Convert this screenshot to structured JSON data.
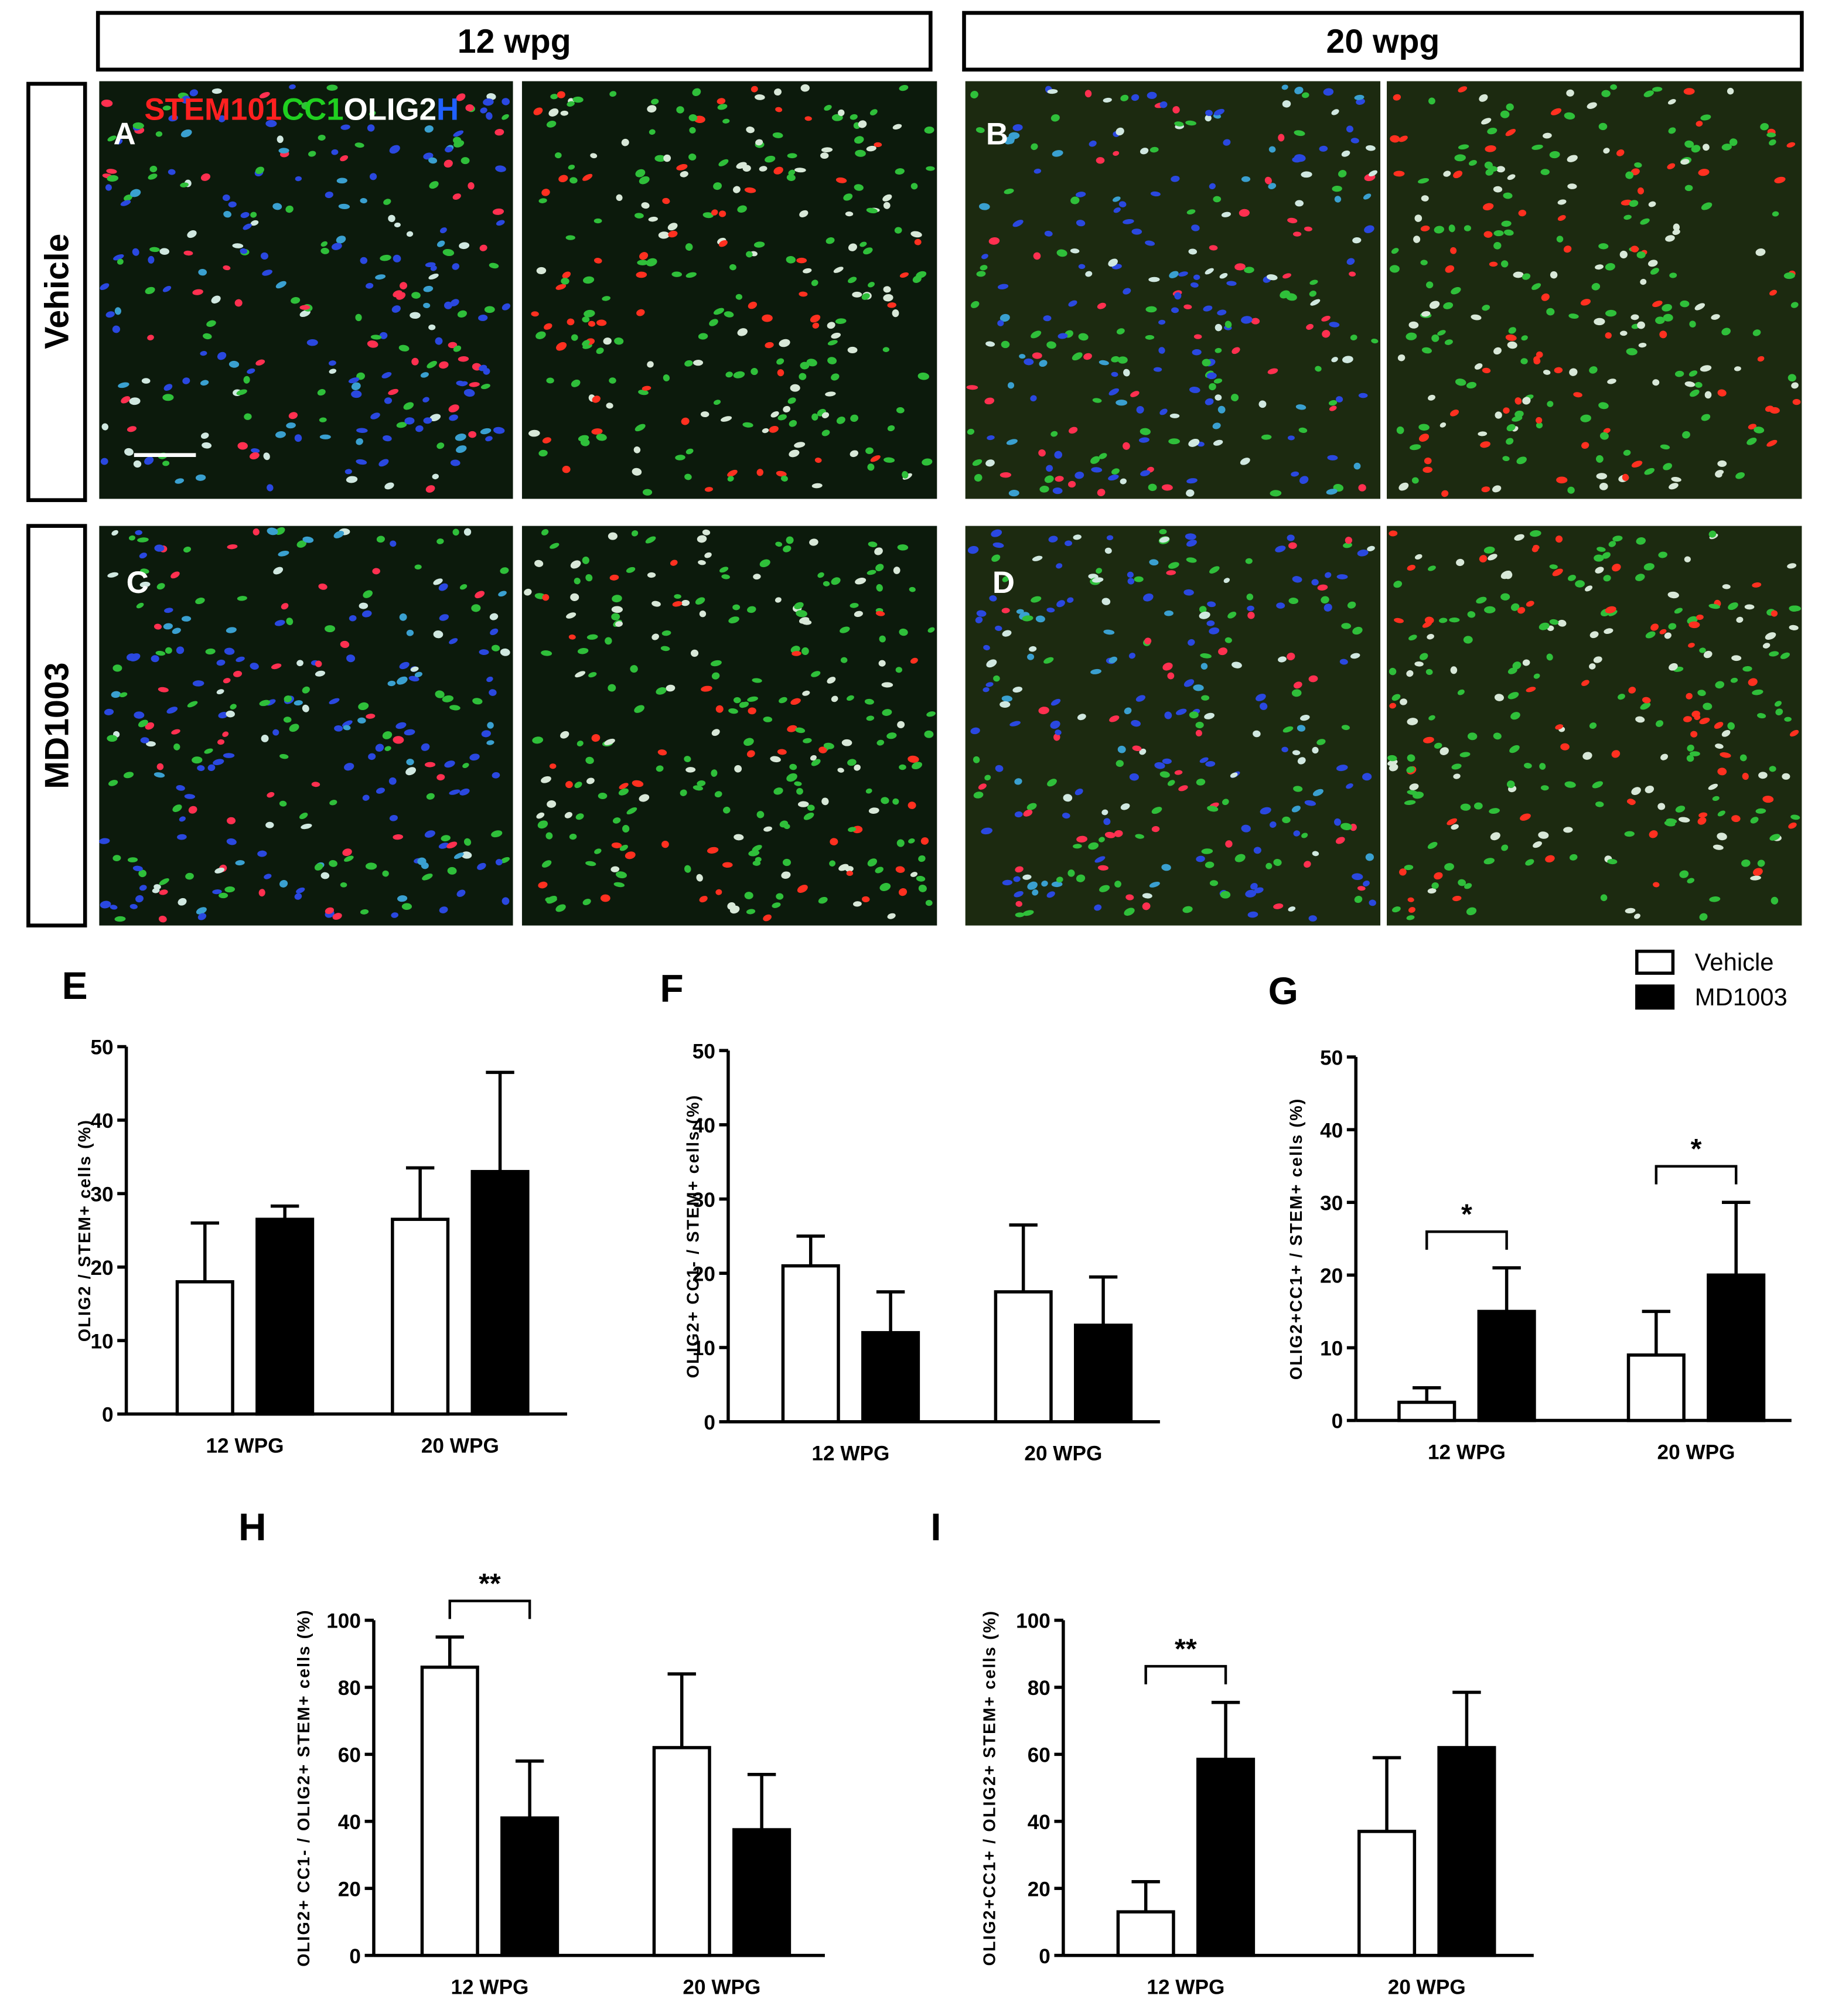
{
  "panels": {
    "columns": [
      "12 wpg",
      "20 wpg"
    ],
    "rows": [
      "Vehicle",
      "MD1003"
    ],
    "letters": [
      "A",
      "B",
      "C",
      "D"
    ],
    "stain": [
      {
        "text": "STEM101",
        "color": "#ff2020"
      },
      {
        "text": "CC1",
        "color": "#20d020"
      },
      {
        "text": "OLIG2",
        "color": "#ffffff"
      },
      {
        "text": "H",
        "color": "#2060ff"
      }
    ]
  },
  "chart_data": [
    {
      "type": "bar",
      "label": "E",
      "ylabel": "OLIG2 / STEM+ cells (%)",
      "categories": [
        "12 WPG",
        "20 WPG"
      ],
      "edgecolor": "#000000",
      "series": [
        {
          "color": "#ffffff",
          "values": [
            18,
            26.5
          ],
          "errors": [
            8,
            7
          ]
        },
        {
          "color": "#000000",
          "values": [
            26.5,
            33
          ],
          "errors": [
            1.8,
            13.5
          ]
        }
      ],
      "ylim": [
        0,
        50
      ],
      "yticks": [
        0,
        10,
        20,
        30,
        40,
        50
      ]
    },
    {
      "type": "bar",
      "label": "F",
      "ylabel": "OLIG2+ CC1- / STEM+ cells (%)",
      "categories": [
        "12 WPG",
        "20 WPG"
      ],
      "edgecolor": "#000000",
      "series": [
        {
          "color": "#ffffff",
          "values": [
            21,
            17.5
          ],
          "errors": [
            4,
            9
          ]
        },
        {
          "color": "#000000",
          "values": [
            12,
            13
          ],
          "errors": [
            5.5,
            6.5
          ]
        }
      ],
      "ylim": [
        0,
        50
      ],
      "yticks": [
        0,
        10,
        20,
        30,
        40,
        50
      ]
    },
    {
      "type": "bar",
      "label": "G",
      "ylabel": "OLIG2+CC1+ / STEM+ cells (%)",
      "categories": [
        "12 WPG",
        "20 WPG"
      ],
      "edgecolor": "#000000",
      "series": [
        {
          "name": "Vehicle",
          "color": "#ffffff",
          "values": [
            2.5,
            9
          ],
          "errors": [
            2,
            6
          ]
        },
        {
          "name": "MD1003",
          "color": "#000000",
          "values": [
            15,
            20
          ],
          "errors": [
            6,
            10
          ]
        }
      ],
      "ylim": [
        0,
        50
      ],
      "yticks": [
        0,
        10,
        20,
        30,
        40,
        50
      ],
      "significance": [
        "*",
        "*"
      ]
    },
    {
      "type": "bar",
      "label": "H",
      "ylabel": "OLIG2+ CC1- / OLIG2+ STEM+ cells (%)",
      "categories": [
        "12 WPG",
        "20 WPG"
      ],
      "edgecolor": "#000000",
      "series": [
        {
          "color": "#ffffff",
          "values": [
            86,
            62
          ],
          "errors": [
            9,
            22
          ]
        },
        {
          "color": "#000000",
          "values": [
            41,
            37.5
          ],
          "errors": [
            17,
            16.5
          ]
        }
      ],
      "ylim": [
        0,
        100
      ],
      "yticks": [
        0,
        20,
        40,
        60,
        80,
        100
      ],
      "significance": [
        "**",
        null
      ]
    },
    {
      "type": "bar",
      "label": "I",
      "ylabel": "OLIG2+CC1+ / OLIG2+ STEM+ cells (%)",
      "categories": [
        "12 WPG",
        "20 WPG"
      ],
      "edgecolor": "#000000",
      "series": [
        {
          "color": "#ffffff",
          "values": [
            13,
            37
          ],
          "errors": [
            9,
            22
          ]
        },
        {
          "color": "#000000",
          "values": [
            58.5,
            62
          ],
          "errors": [
            17,
            16.5
          ]
        }
      ],
      "ylim": [
        0,
        100
      ],
      "yticks": [
        0,
        20,
        40,
        60,
        80,
        100
      ],
      "significance": [
        "**",
        null
      ]
    }
  ]
}
